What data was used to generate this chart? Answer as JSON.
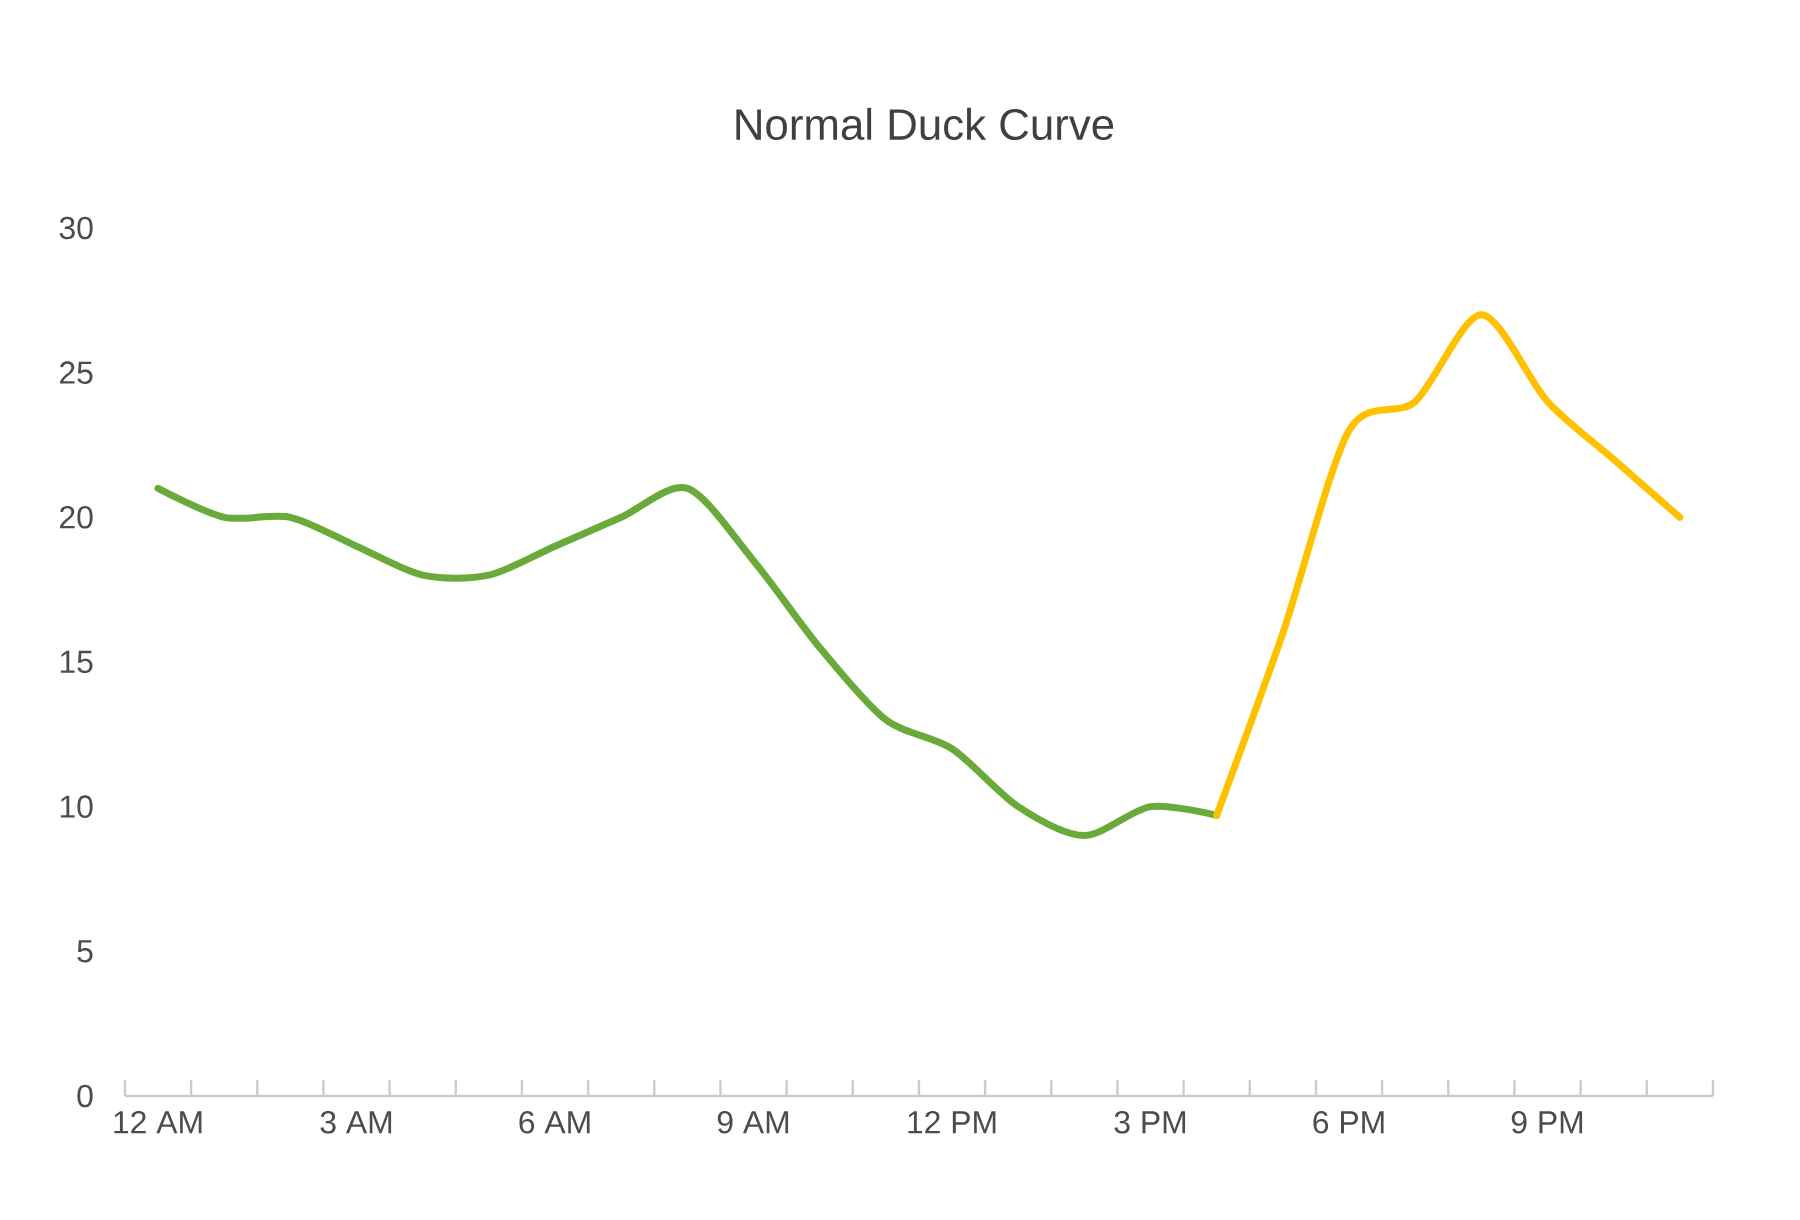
{
  "chart_data": {
    "type": "line",
    "title": "Normal Duck Curve",
    "categories": [
      "12 AM",
      null,
      null,
      "3 AM",
      null,
      null,
      "6 AM",
      null,
      null,
      "9 AM",
      null,
      null,
      "12 PM",
      null,
      null,
      "3 PM",
      null,
      null,
      "6 PM",
      null,
      null,
      "9 PM",
      null,
      null
    ],
    "series": [
      {
        "color": "#6aaa3a",
        "values": [
          21,
          20,
          20,
          19,
          18,
          18,
          19,
          20,
          21,
          18.5,
          15.5,
          13,
          12,
          10,
          9,
          10,
          9.7,
          null,
          null,
          null,
          null,
          null,
          null,
          null
        ]
      },
      {
        "color": "#ffc000",
        "values": [
          null,
          null,
          null,
          null,
          null,
          null,
          null,
          null,
          null,
          null,
          null,
          null,
          null,
          null,
          null,
          null,
          9.7,
          16,
          23,
          24,
          27,
          24,
          22,
          20
        ]
      }
    ],
    "ylim": [
      0,
      30
    ],
    "yticks": [
      0,
      5,
      10,
      15,
      20,
      25,
      30
    ],
    "grid": false
  }
}
